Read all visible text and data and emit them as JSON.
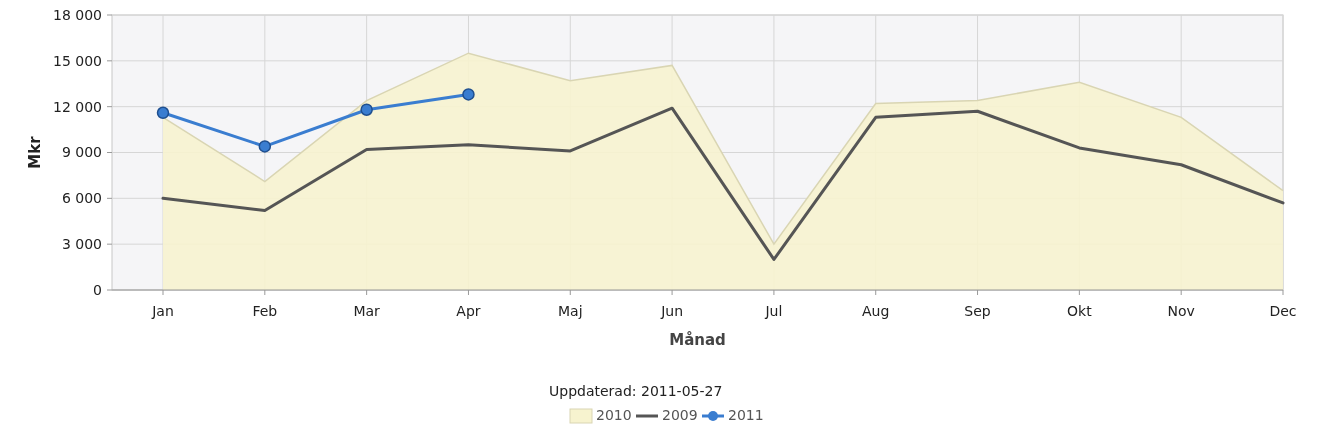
{
  "chart_data": {
    "type": "line",
    "xlabel": "Månad",
    "ylabel": "Mkr",
    "categories": [
      "Jan",
      "Feb",
      "Mar",
      "Apr",
      "Maj",
      "Jun",
      "Jul",
      "Aug",
      "Sep",
      "Okt",
      "Nov",
      "Dec"
    ],
    "series": [
      {
        "name": "2010",
        "type": "area",
        "color": "#f7f3cf",
        "values": [
          11300,
          7100,
          12400,
          15500,
          13700,
          14700,
          3000,
          12200,
          12400,
          13600,
          11300,
          6500
        ]
      },
      {
        "name": "2009",
        "color": "#555555",
        "marker": "none",
        "values": [
          6000,
          5200,
          9200,
          9500,
          9100,
          11900,
          2000,
          11300,
          11700,
          9300,
          8200,
          5700
        ]
      },
      {
        "name": "2011",
        "color": "#3a7dd0",
        "marker": "circle",
        "values": [
          11600,
          9400,
          11800,
          12800,
          null,
          null,
          null,
          null,
          null,
          null,
          null,
          null
        ]
      }
    ],
    "ylim": [
      0,
      18000
    ],
    "yticks": [
      0,
      {
        "value": 3000,
        "label": "3 000"
      },
      {
        "value": 6000,
        "label": "6 000"
      },
      {
        "value": 9000,
        "label": "9 000"
      },
      {
        "value": 12000,
        "label": "12 000"
      },
      {
        "value": 15000,
        "label": "15 000"
      },
      {
        "value": 18000,
        "label": "18 000"
      }
    ],
    "grid": true,
    "legend": "bottom",
    "annotations": [
      "Uppdaterad: 2011-05-27"
    ]
  }
}
